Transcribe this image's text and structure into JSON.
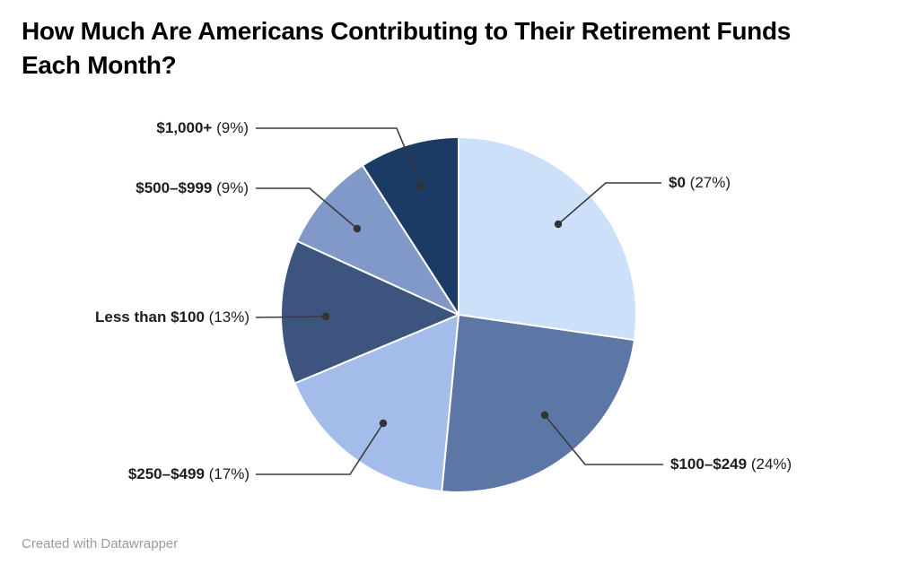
{
  "footer": {
    "credit": "Created with Datawrapper"
  },
  "colors": {
    "background": "#ffffff",
    "title_text": "#000000",
    "label_text": "#1d1d1d",
    "leader_line": "#3b3b3b",
    "leader_dot": "#333333",
    "slice_border": "#ffffff",
    "credit_text": "#9b9b9b"
  },
  "chart_data": {
    "type": "pie",
    "title": "How Much Are Americans Contributing to Their Retirement Funds Each Month?",
    "value_format": "percent",
    "start_angle": "12 o'clock",
    "direction": "clockwise",
    "legend_position": "none",
    "slices": [
      {
        "label": "$0",
        "value": 27,
        "pct_label": "(27%)",
        "color": "#cce0f9"
      },
      {
        "label": "$100–$249",
        "value": 24,
        "pct_label": "(24%)",
        "color": "#5c76a5"
      },
      {
        "label": "$250–$499",
        "value": 17,
        "pct_label": "(17%)",
        "color": "#a4bce9"
      },
      {
        "label": "Less than $100",
        "value": 13,
        "pct_label": "(13%)",
        "color": "#3d547e"
      },
      {
        "label": "$500–$999",
        "value": 9,
        "pct_label": "(9%)",
        "color": "#8199c8"
      },
      {
        "label": "$1,000+",
        "value": 9,
        "pct_label": "(9%)",
        "color": "#1b3a64"
      }
    ]
  }
}
